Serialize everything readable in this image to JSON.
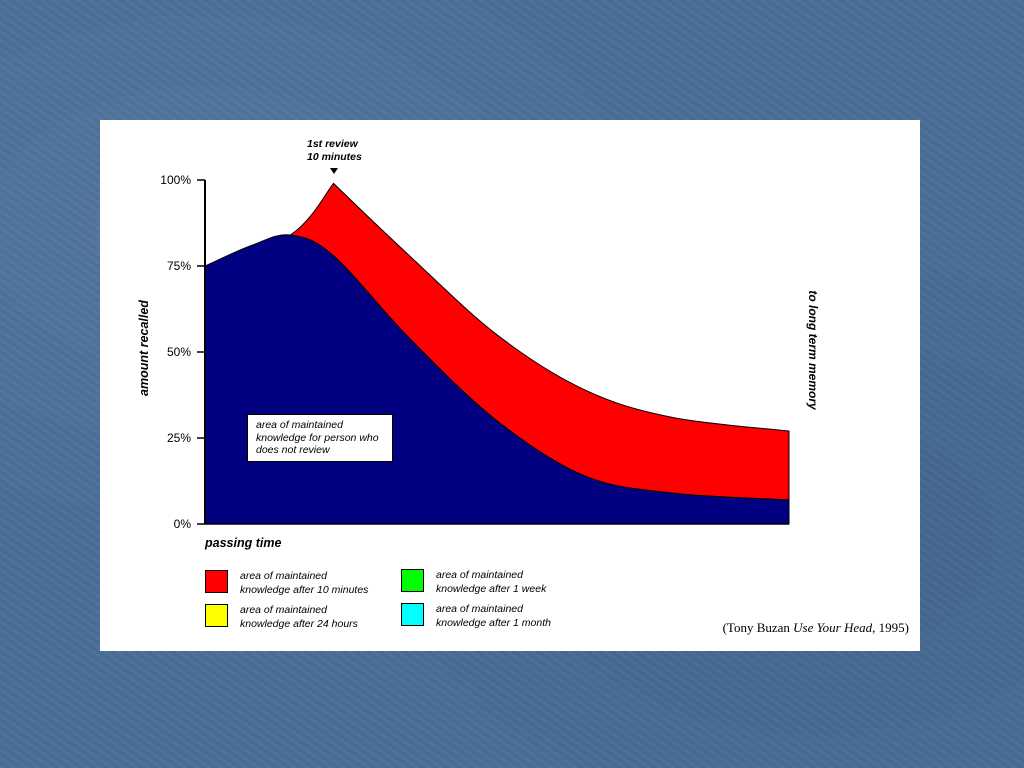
{
  "citation": {
    "author": "(Tony Buzan ",
    "book": "Use Your Head",
    "year": ", 1995)"
  },
  "chart_data": {
    "type": "area",
    "ylabel": "amount recalled",
    "xlabel": "passing time",
    "right_label": "to long term memory",
    "ylim": [
      0,
      100
    ],
    "y_ticks": [
      "100%",
      "75%",
      "50%",
      "25%",
      "0%"
    ],
    "y_tick_values": [
      100,
      75,
      50,
      25,
      0
    ],
    "annotation_review": {
      "line1": "1st review",
      "line2": "10 minutes",
      "x": 0.22
    },
    "annotation_box": [
      "area of maintained",
      "knowledge for person who",
      "does not review"
    ],
    "series": [
      {
        "name": "area of maintained knowledge after 10 minutes",
        "color": "#ff0000",
        "x": [
          0,
          0.146,
          0.22,
          0.35,
          0.5,
          0.65,
          0.8,
          1.0
        ],
        "y": [
          75,
          84,
          99,
          78,
          55,
          39,
          31,
          27
        ]
      },
      {
        "name": "area of maintained knowledge for person who does not review",
        "color": "#000080",
        "x": [
          0,
          0.08,
          0.146,
          0.22,
          0.35,
          0.5,
          0.65,
          0.8,
          1.0
        ],
        "y": [
          75,
          81,
          84,
          78,
          54,
          30,
          14,
          9,
          7
        ]
      }
    ],
    "legend": [
      {
        "color": "#ff0000",
        "line1": "area of maintained",
        "line2": "knowledge after 10 minutes"
      },
      {
        "color": "#ffff00",
        "line1": "area of maintained",
        "line2": "knowledge after 24 hours"
      },
      {
        "color": "#00ff00",
        "line1": "area of maintained",
        "line2": "knowledge after 1 week"
      },
      {
        "color": "#00ffff",
        "line1": "area of maintained",
        "line2": "knowledge after 1 month"
      }
    ]
  }
}
